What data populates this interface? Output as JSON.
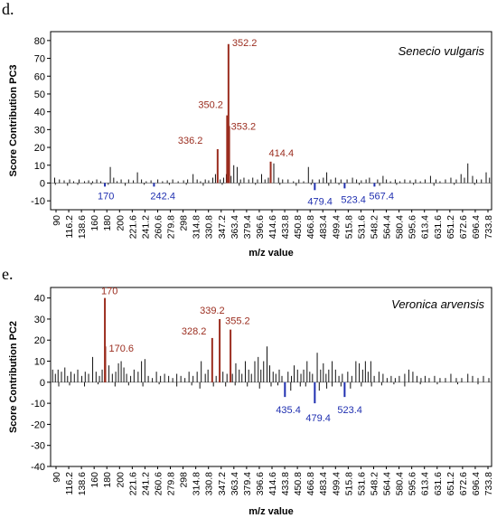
{
  "panels": [
    {
      "letter": "d."
    },
    {
      "letter": "e."
    }
  ],
  "chart_data": [
    {
      "type": "bar",
      "title": "Senecio vulgaris",
      "xlabel": "m/z value",
      "ylabel": "Score Contribution PC3",
      "xlim": [
        90,
        740
      ],
      "ylim": [
        -15,
        85
      ],
      "y_ticks": [
        -10,
        0,
        10,
        20,
        30,
        40,
        50,
        60,
        70,
        80
      ],
      "x_tick_labels": [
        "90",
        "116.2",
        "138.6",
        "160",
        "180",
        "200",
        "221.6",
        "241.2",
        "260.6",
        "279.8",
        "298",
        "314.8",
        "330.8",
        "347.2",
        "363.4",
        "379.4",
        "396.6",
        "414.6",
        "433.8",
        "450.8",
        "466.8",
        "483.4",
        "499.4",
        "515.8",
        "531.6",
        "548.2",
        "564.4",
        "580.4",
        "595.6",
        "613.4",
        "631.6",
        "651.2",
        "672.6",
        "696.4",
        "733.8"
      ],
      "peaks": [
        {
          "x": 352.2,
          "y": 78,
          "label": "352.2",
          "color": "#9b2d1f"
        },
        {
          "x": 350.2,
          "y": 38,
          "label": "350.2",
          "color": "#9b2d1f"
        },
        {
          "x": 353.2,
          "y": 32,
          "label": "353.2",
          "color": "#9b2d1f"
        },
        {
          "x": 336.2,
          "y": 19,
          "label": "336.2",
          "color": "#9b2d1f"
        },
        {
          "x": 414.4,
          "y": 12,
          "label": "414.4",
          "color": "#9b2d1f"
        },
        {
          "x": 170,
          "y": -2,
          "label": "170",
          "color": "#1f2fb0"
        },
        {
          "x": 242.4,
          "y": -2,
          "label": "242.4",
          "color": "#1f2fb0"
        },
        {
          "x": 479.4,
          "y": -4,
          "label": "479.4",
          "color": "#1f2fb0"
        },
        {
          "x": 523.4,
          "y": -3,
          "label": "523.4",
          "color": "#1f2fb0"
        },
        {
          "x": 567.4,
          "y": -2,
          "label": "567.4",
          "color": "#1f2fb0"
        }
      ],
      "minor_peaks": [
        [
          96,
          3
        ],
        [
          103,
          2
        ],
        [
          110,
          1.5
        ],
        [
          118,
          2
        ],
        [
          124,
          1
        ],
        [
          132,
          2
        ],
        [
          140,
          1
        ],
        [
          146,
          1.5
        ],
        [
          152,
          1
        ],
        [
          158,
          2
        ],
        [
          164,
          1
        ],
        [
          178,
          9
        ],
        [
          183,
          3
        ],
        [
          188,
          1
        ],
        [
          194,
          2
        ],
        [
          205,
          2
        ],
        [
          212,
          1.5
        ],
        [
          218,
          6
        ],
        [
          224,
          2
        ],
        [
          231,
          1
        ],
        [
          238,
          1.5
        ],
        [
          248,
          2
        ],
        [
          255,
          1
        ],
        [
          262,
          1.5
        ],
        [
          270,
          2
        ],
        [
          278,
          1
        ],
        [
          286,
          1.5
        ],
        [
          292,
          2
        ],
        [
          300,
          5
        ],
        [
          306,
          2
        ],
        [
          311,
          1
        ],
        [
          318,
          2
        ],
        [
          323,
          1.5
        ],
        [
          329,
          3
        ],
        [
          333,
          5
        ],
        [
          340,
          2
        ],
        [
          345,
          3
        ],
        [
          349,
          5
        ],
        [
          356,
          4
        ],
        [
          360,
          10
        ],
        [
          365,
          9
        ],
        [
          370,
          2
        ],
        [
          375,
          3
        ],
        [
          382,
          2
        ],
        [
          388,
          3
        ],
        [
          395,
          2
        ],
        [
          401,
          5
        ],
        [
          406,
          2
        ],
        [
          411,
          3
        ],
        [
          419,
          11
        ],
        [
          426,
          3
        ],
        [
          432,
          2
        ],
        [
          440,
          2
        ],
        [
          448,
          1
        ],
        [
          456,
          2
        ],
        [
          463,
          1
        ],
        [
          470,
          9
        ],
        [
          476,
          2
        ],
        [
          486,
          2
        ],
        [
          492,
          3
        ],
        [
          497,
          6
        ],
        [
          503,
          2
        ],
        [
          510,
          3
        ],
        [
          518,
          2
        ],
        [
          527,
          2
        ],
        [
          535,
          3
        ],
        [
          541,
          2
        ],
        [
          548,
          1.5
        ],
        [
          555,
          2
        ],
        [
          560,
          3
        ],
        [
          572,
          2
        ],
        [
          580,
          4
        ],
        [
          585,
          2
        ],
        [
          591,
          1
        ],
        [
          598,
          2
        ],
        [
          605,
          1
        ],
        [
          612,
          2
        ],
        [
          620,
          1.5
        ],
        [
          628,
          2
        ],
        [
          635,
          1
        ],
        [
          642,
          2
        ],
        [
          650,
          4
        ],
        [
          658,
          2
        ],
        [
          664,
          1
        ],
        [
          672,
          2
        ],
        [
          680,
          3
        ],
        [
          688,
          2
        ],
        [
          695,
          5
        ],
        [
          700,
          3
        ],
        [
          705,
          11
        ],
        [
          712,
          4
        ],
        [
          718,
          2
        ],
        [
          725,
          2
        ],
        [
          732,
          6
        ],
        [
          737,
          3
        ],
        [
          97,
          -1
        ],
        [
          115,
          -1.5
        ],
        [
          130,
          -1
        ],
        [
          150,
          -1
        ],
        [
          175,
          -1
        ],
        [
          200,
          -1.5
        ],
        [
          228,
          -1
        ],
        [
          265,
          -1
        ],
        [
          290,
          -1
        ],
        [
          315,
          -1.5
        ],
        [
          343,
          -1
        ],
        [
          368,
          -1.5
        ],
        [
          392,
          -1
        ],
        [
          428,
          -1
        ],
        [
          452,
          -1.5
        ],
        [
          474,
          -1
        ],
        [
          500,
          -1.5
        ],
        [
          515,
          -1
        ],
        [
          545,
          -1
        ],
        [
          575,
          -1.5
        ],
        [
          600,
          -1
        ],
        [
          625,
          -1
        ],
        [
          655,
          -1.5
        ],
        [
          685,
          -1
        ],
        [
          715,
          -1
        ]
      ]
    },
    {
      "type": "bar",
      "title": "Veronica arvensis",
      "xlabel": "m/z value",
      "ylabel": "Score Contribution PC2",
      "xlim": [
        90,
        740
      ],
      "ylim": [
        -40,
        45
      ],
      "y_ticks": [
        -40,
        -30,
        -20,
        -10,
        0,
        10,
        20,
        30,
        40
      ],
      "x_tick_labels": [
        "90",
        "116.2",
        "138.6",
        "160",
        "180",
        "200",
        "221.6",
        "241.2",
        "260.6",
        "279.8",
        "298",
        "314.8",
        "330.8",
        "347.2",
        "363.4",
        "379.4",
        "396.6",
        "414.6",
        "433.8",
        "450.8",
        "466.8",
        "483.4",
        "499.4",
        "515.8",
        "531.6",
        "548.2",
        "564.4",
        "580.4",
        "595.6",
        "613.4",
        "631.6",
        "651.2",
        "672.6",
        "696.4",
        "733.8"
      ],
      "peaks": [
        {
          "x": 170,
          "y": 40,
          "label": "170",
          "color": "#9b2d1f"
        },
        {
          "x": 170.6,
          "y": 17,
          "label": "170.6",
          "color": "#9b2d1f"
        },
        {
          "x": 328.2,
          "y": 21,
          "label": "328.2",
          "color": "#9b2d1f"
        },
        {
          "x": 339.2,
          "y": 30,
          "label": "339.2",
          "color": "#9b2d1f"
        },
        {
          "x": 355.2,
          "y": 25,
          "label": "355.2",
          "color": "#9b2d1f"
        },
        {
          "x": 435.4,
          "y": -7,
          "label": "435.4",
          "color": "#1f2fb0"
        },
        {
          "x": 479.4,
          "y": -10,
          "label": "479.4",
          "color": "#1f2fb0"
        },
        {
          "x": 523.4,
          "y": -7,
          "label": "523.4",
          "color": "#1f2fb0"
        }
      ],
      "minor_peaks": [
        [
          93,
          6
        ],
        [
          97,
          4
        ],
        [
          101,
          6
        ],
        [
          106,
          5
        ],
        [
          111,
          7
        ],
        [
          115,
          3
        ],
        [
          120,
          5
        ],
        [
          125,
          4
        ],
        [
          130,
          6
        ],
        [
          136,
          3
        ],
        [
          141,
          5
        ],
        [
          146,
          4
        ],
        [
          152,
          12
        ],
        [
          157,
          5
        ],
        [
          162,
          3
        ],
        [
          166,
          6
        ],
        [
          176,
          8
        ],
        [
          181,
          4
        ],
        [
          186,
          5
        ],
        [
          190,
          9
        ],
        [
          194,
          10
        ],
        [
          198,
          7
        ],
        [
          202,
          4
        ],
        [
          208,
          3
        ],
        [
          213,
          6
        ],
        [
          219,
          5
        ],
        [
          224,
          10
        ],
        [
          229,
          11
        ],
        [
          234,
          3
        ],
        [
          240,
          2
        ],
        [
          246,
          5
        ],
        [
          252,
          3
        ],
        [
          258,
          4
        ],
        [
          264,
          3
        ],
        [
          270,
          2
        ],
        [
          276,
          4
        ],
        [
          282,
          3
        ],
        [
          288,
          2
        ],
        [
          294,
          5
        ],
        [
          300,
          3
        ],
        [
          306,
          5
        ],
        [
          312,
          10
        ],
        [
          318,
          4
        ],
        [
          322,
          6
        ],
        [
          334,
          3
        ],
        [
          344,
          5
        ],
        [
          350,
          4
        ],
        [
          358,
          4
        ],
        [
          363,
          9
        ],
        [
          368,
          6
        ],
        [
          372,
          4
        ],
        [
          377,
          10
        ],
        [
          382,
          6
        ],
        [
          386,
          4
        ],
        [
          391,
          10
        ],
        [
          396,
          12
        ],
        [
          400,
          6
        ],
        [
          404,
          10
        ],
        [
          409,
          17
        ],
        [
          413,
          8
        ],
        [
          418,
          5
        ],
        [
          422,
          4
        ],
        [
          427,
          6
        ],
        [
          431,
          3
        ],
        [
          440,
          5
        ],
        [
          445,
          3
        ],
        [
          449,
          8
        ],
        [
          454,
          6
        ],
        [
          459,
          4
        ],
        [
          463,
          6
        ],
        [
          468,
          10
        ],
        [
          472,
          5
        ],
        [
          476,
          4
        ],
        [
          483,
          14
        ],
        [
          488,
          6
        ],
        [
          492,
          9
        ],
        [
          496,
          4
        ],
        [
          500,
          6
        ],
        [
          505,
          10
        ],
        [
          510,
          6
        ],
        [
          515,
          3
        ],
        [
          520,
          4
        ],
        [
          528,
          5
        ],
        [
          534,
          3
        ],
        [
          540,
          10
        ],
        [
          545,
          9
        ],
        [
          550,
          6
        ],
        [
          554,
          10
        ],
        [
          558,
          5
        ],
        [
          562,
          10
        ],
        [
          567,
          3
        ],
        [
          574,
          5
        ],
        [
          580,
          4
        ],
        [
          586,
          2
        ],
        [
          592,
          3
        ],
        [
          598,
          2
        ],
        [
          604,
          3
        ],
        [
          612,
          4
        ],
        [
          618,
          6
        ],
        [
          624,
          5
        ],
        [
          630,
          3
        ],
        [
          636,
          2
        ],
        [
          642,
          3
        ],
        [
          648,
          2
        ],
        [
          656,
          3
        ],
        [
          664,
          2
        ],
        [
          672,
          2
        ],
        [
          680,
          4
        ],
        [
          688,
          2
        ],
        [
          696,
          2
        ],
        [
          705,
          4
        ],
        [
          712,
          3
        ],
        [
          720,
          2
        ],
        [
          728,
          3
        ],
        [
          736,
          2
        ],
        [
          102,
          -2
        ],
        [
          118,
          -1.5
        ],
        [
          140,
          -2
        ],
        [
          160,
          -1
        ],
        [
          185,
          -2
        ],
        [
          205,
          -1.5
        ],
        [
          226,
          -2
        ],
        [
          250,
          -1
        ],
        [
          276,
          -2
        ],
        [
          298,
          -1.5
        ],
        [
          310,
          -3
        ],
        [
          330,
          -2
        ],
        [
          348,
          -2
        ],
        [
          362,
          -1.5
        ],
        [
          380,
          -2
        ],
        [
          398,
          -3
        ],
        [
          415,
          -2
        ],
        [
          425,
          -1.5
        ],
        [
          444,
          -4
        ],
        [
          458,
          -2
        ],
        [
          466,
          -2
        ],
        [
          486,
          -4
        ],
        [
          497,
          -3
        ],
        [
          505,
          -2
        ],
        [
          518,
          -2
        ],
        [
          532,
          -3
        ],
        [
          548,
          -2
        ],
        [
          563,
          -2
        ],
        [
          578,
          -1.5
        ],
        [
          596,
          -1
        ],
        [
          612,
          -2
        ],
        [
          635,
          -1
        ],
        [
          660,
          -1
        ],
        [
          690,
          -1
        ],
        [
          720,
          -1
        ]
      ]
    }
  ]
}
